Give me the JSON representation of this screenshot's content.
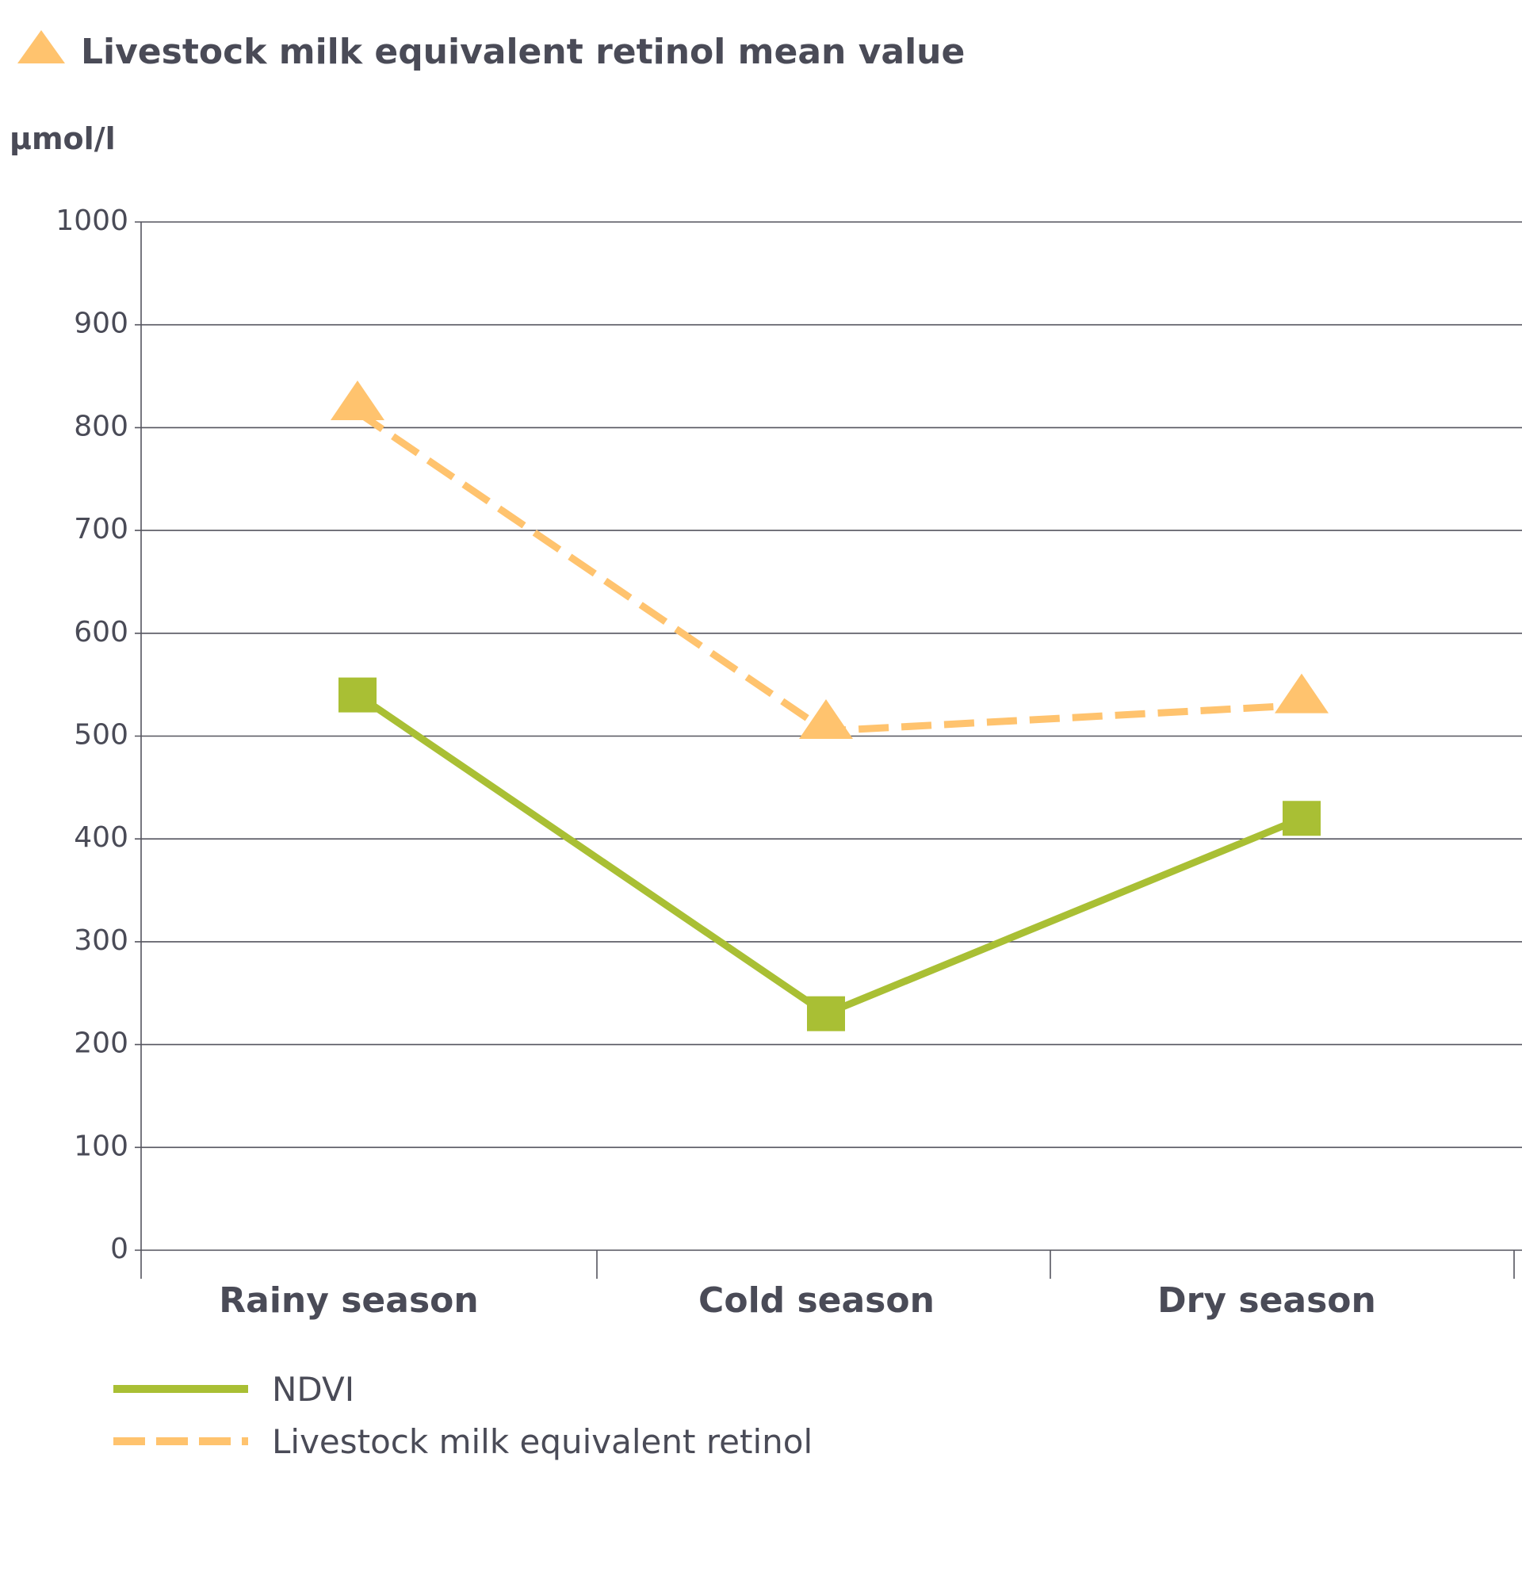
{
  "chart_data": {
    "type": "line",
    "title": "Livestock milk equivalent retinol mean value",
    "ylabel": "µmol/l",
    "xlabel": "",
    "ylim": [
      0,
      1000
    ],
    "yticks": [
      "0",
      "100",
      "200",
      "300",
      "400",
      "500",
      "600",
      "700",
      "800",
      "900",
      "1000"
    ],
    "categories": [
      "Rainy season",
      "Cold season",
      "Dry season"
    ],
    "grid": true,
    "legend_position": "bottom-left",
    "series": [
      {
        "name": "NDVI",
        "values": [
          540,
          230,
          420
        ],
        "color": "#a9bf34",
        "marker": "square",
        "dash": false
      },
      {
        "name": "Livestock milk equivalent retinol",
        "values": [
          815,
          505,
          530
        ],
        "color": "#ffc36e",
        "marker": "triangle",
        "dash": true
      }
    ]
  }
}
